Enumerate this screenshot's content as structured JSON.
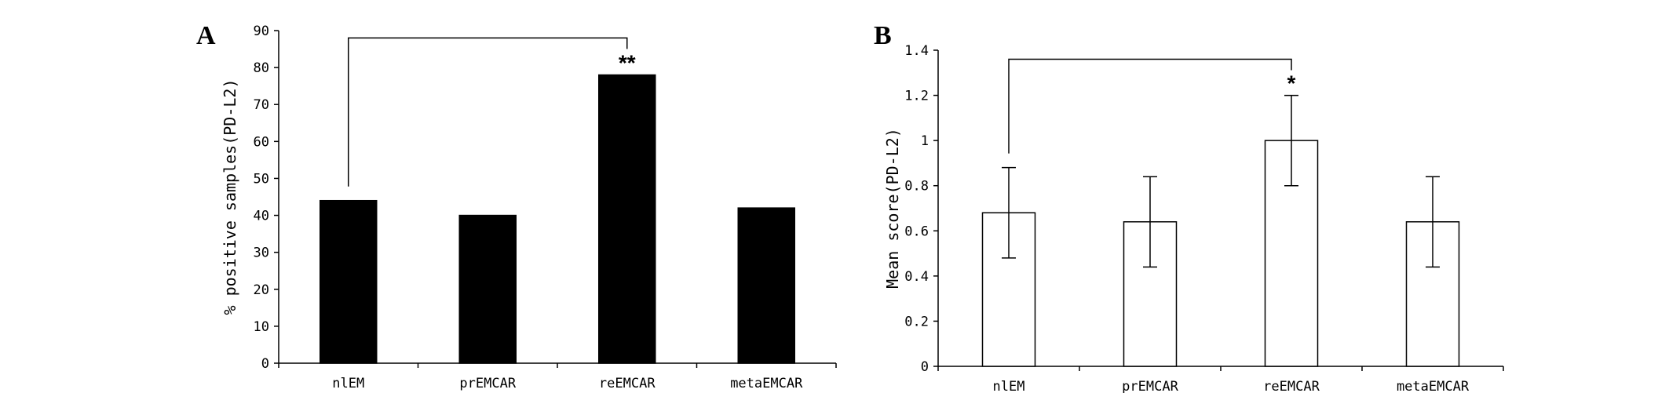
{
  "chart_data": [
    {
      "panel": "A",
      "type": "bar",
      "categories": [
        "nlEM",
        "prEMCAR",
        "reEMCAR",
        "metaEMCAR"
      ],
      "values": [
        44,
        40,
        78,
        42
      ],
      "ylabel": "% positive samples(PD-L2)",
      "ylim": [
        0,
        90
      ],
      "yticks": [
        0,
        10,
        20,
        30,
        40,
        50,
        60,
        70,
        80,
        90
      ],
      "bar_fill": "#000000",
      "significance": {
        "from": 0,
        "to": 2,
        "label": "**",
        "bracket_y": 88
      }
    },
    {
      "panel": "B",
      "type": "bar",
      "categories": [
        "nlEM",
        "prEMCAR",
        "reEMCAR",
        "metaEMCAR"
      ],
      "values": [
        0.68,
        0.64,
        1.0,
        0.64
      ],
      "errors": [
        0.2,
        0.2,
        0.2,
        0.2
      ],
      "ylabel": "Mean score(PD-L2)",
      "ylim": [
        0,
        1.4
      ],
      "yticks": [
        0,
        0.2,
        0.4,
        0.6,
        0.8,
        1,
        1.2,
        1.4
      ],
      "bar_fill": "#ffffff",
      "significance": {
        "from": 0,
        "to": 2,
        "label": "*",
        "bracket_y": 1.36
      }
    }
  ]
}
